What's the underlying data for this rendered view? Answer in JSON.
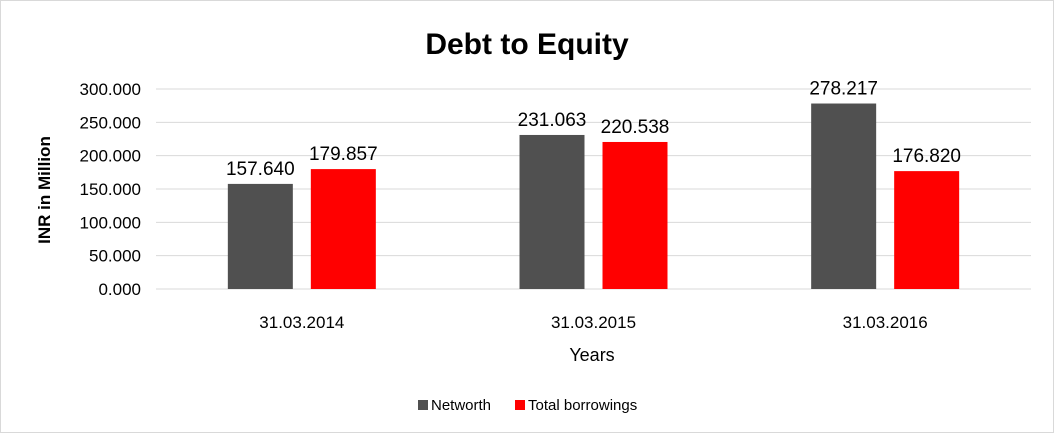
{
  "chart_data": {
    "type": "bar",
    "title": "Debt to Equity",
    "xlabel": "Years",
    "ylabel": "INR in Million",
    "categories": [
      "31.03.2014",
      "31.03.2015",
      "31.03.2016"
    ],
    "series": [
      {
        "name": "Networth",
        "color": "#505050",
        "values": [
          157.64,
          231.063,
          278.217
        ],
        "value_labels": [
          "157.640",
          "231.063",
          "278.217"
        ]
      },
      {
        "name": "Total borrowings",
        "color": "#ff0000",
        "values": [
          179.857,
          220.538,
          176.82
        ],
        "value_labels": [
          "179.857",
          "220.538",
          "176.820"
        ]
      }
    ],
    "ylim": [
      0,
      300
    ],
    "yticks": [
      0,
      50,
      100,
      150,
      200,
      250,
      300
    ],
    "ytick_labels": [
      "0.000",
      "50.000",
      "100.000",
      "150.000",
      "200.000",
      "250.000",
      "300.000"
    ],
    "grid": true,
    "gridline_color": "#d9d9d9",
    "legend_position": "bottom-center"
  }
}
